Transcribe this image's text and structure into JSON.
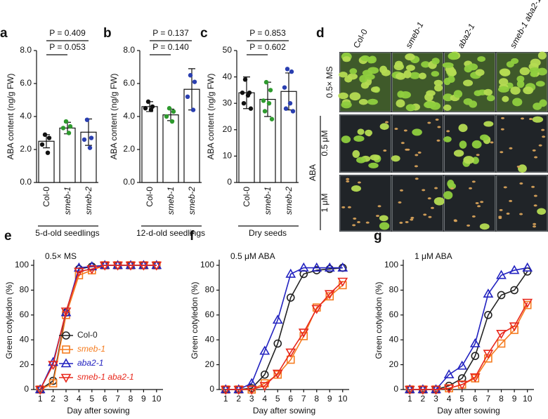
{
  "chart_data": [
    {
      "type": "bar",
      "panel": "a",
      "ylabel": "ABA content (ng/g FW)",
      "xlabel": "5-d-old seedlings",
      "categories": [
        "Col-0",
        "smeb-1",
        "smeb-2"
      ],
      "values": [
        2.5,
        3.3,
        3.05
      ],
      "errors": [
        0.4,
        0.35,
        0.8
      ],
      "points": [
        [
          2.9,
          2.7,
          2.3,
          1.8
        ],
        [
          3.7,
          3.4,
          3.3,
          3.0
        ],
        [
          3.8,
          2.7,
          2.6,
          2.1
        ]
      ],
      "point_colors": [
        "#111111",
        "#2e9a2e",
        "#2a3fb0"
      ],
      "ylim": [
        0,
        8
      ],
      "yticks": [
        {
          "value": 0,
          "label": "0.0"
        },
        {
          "value": 2,
          "label": "2.0"
        },
        {
          "value": 4,
          "label": "4.0"
        },
        {
          "value": 6,
          "label": "6.0"
        },
        {
          "value": 8,
          "label": "8.0"
        }
      ],
      "annotations": [
        "P = 0.409",
        "P = 0.053"
      ]
    },
    {
      "type": "bar",
      "panel": "b",
      "ylabel": "ABA content (ng/g FW)",
      "xlabel": "12-d-old seedlings",
      "categories": [
        "Col-0",
        "smeb-1",
        "smeb-2"
      ],
      "values": [
        4.6,
        4.1,
        5.65
      ],
      "errors": [
        0.3,
        0.35,
        1.25
      ],
      "points": [
        [
          4.9,
          4.6,
          4.5,
          4.4
        ],
        [
          4.5,
          4.3,
          4.0,
          3.7
        ],
        [
          6.5,
          6.1,
          5.2,
          4.4
        ]
      ],
      "point_colors": [
        "#111111",
        "#2e9a2e",
        "#2a3fb0"
      ],
      "ylim": [
        0,
        8
      ],
      "yticks": [
        {
          "value": 0,
          "label": "0.0"
        },
        {
          "value": 2,
          "label": "2.0"
        },
        {
          "value": 4,
          "label": "4.0"
        },
        {
          "value": 6,
          "label": "6.0"
        },
        {
          "value": 8,
          "label": "8.0"
        }
      ],
      "annotations": [
        "P = 0.137",
        "P = 0.140"
      ]
    },
    {
      "type": "bar",
      "panel": "c",
      "ylabel": "ABA content (ng/g FW)",
      "xlabel": "Dry seeds",
      "categories": [
        "Col-0",
        "smeb-1",
        "smeb-2"
      ],
      "values": [
        34,
        31.5,
        34.5
      ],
      "errors": [
        6,
        6.5,
        7
      ],
      "points": [
        [
          39,
          34,
          34,
          33,
          30,
          28
        ],
        [
          38,
          35,
          31,
          30,
          27,
          24
        ],
        [
          43,
          42,
          36,
          30,
          28,
          27
        ]
      ],
      "point_colors": [
        "#111111",
        "#2e9a2e",
        "#2a3fb0"
      ],
      "ylim": [
        0,
        50
      ],
      "yticks": [
        0,
        10,
        20,
        30,
        40,
        50
      ],
      "annotations": [
        "P = 0.853",
        "P = 0.602"
      ]
    },
    {
      "type": "line",
      "panel": "e",
      "title": "0.5× MS",
      "ylabel": "Green cotyledon (%)",
      "xlabel": "Day after sowing",
      "x": [
        1,
        2,
        3,
        4,
        5,
        6,
        7,
        8,
        9,
        10
      ],
      "xlim": [
        0.5,
        10.5
      ],
      "xticks": [
        1,
        2,
        3,
        4,
        5,
        6,
        7,
        8,
        9,
        10
      ],
      "ylim": [
        0,
        100
      ],
      "yticks": [
        0,
        20,
        40,
        60,
        80,
        100
      ],
      "legend": "lower right",
      "series": [
        {
          "name": "Col-0",
          "color": "#222222",
          "marker": "circle",
          "values": [
            0,
            7,
            62,
            97,
            99,
            100,
            100,
            100,
            100,
            100
          ]
        },
        {
          "name": "smeb-1",
          "color": "#f57c20",
          "marker": "square",
          "values": [
            0,
            5,
            60,
            92,
            96,
            100,
            100,
            100,
            100,
            100
          ]
        },
        {
          "name": "aba2-1",
          "color": "#2222c0",
          "marker": "triangle-up",
          "values": [
            0,
            22,
            62,
            98,
            99,
            100,
            100,
            100,
            100,
            100
          ]
        },
        {
          "name": "smeb-1 aba2-1",
          "color": "#e8281c",
          "marker": "triangle-down",
          "values": [
            0,
            20,
            63,
            95,
            97,
            100,
            100,
            100,
            100,
            100
          ]
        }
      ]
    },
    {
      "type": "line",
      "panel": "f",
      "title": "0.5 μM ABA",
      "ylabel": "Green cotyledon (%)",
      "xlabel": "Day after sowing",
      "x": [
        1,
        2,
        3,
        4,
        5,
        6,
        7,
        8,
        9,
        10
      ],
      "xlim": [
        0.5,
        10.5
      ],
      "xticks": [
        1,
        2,
        3,
        4,
        5,
        6,
        7,
        8,
        9,
        10
      ],
      "ylim": [
        0,
        100
      ],
      "yticks": [
        0,
        20,
        40,
        60,
        80,
        100
      ],
      "series": [
        {
          "color": "#222222",
          "marker": "circle",
          "values": [
            0,
            0,
            1,
            12,
            37,
            74,
            93,
            96,
            97,
            98
          ]
        },
        {
          "color": "#f57c20",
          "marker": "square",
          "values": [
            0,
            0,
            0,
            5,
            12,
            24,
            43,
            66,
            75,
            84
          ]
        },
        {
          "color": "#2222c0",
          "marker": "triangle-up",
          "values": [
            0,
            0,
            5,
            31,
            56,
            93,
            98,
            98,
            98,
            98
          ]
        },
        {
          "color": "#e8281c",
          "marker": "triangle-down",
          "values": [
            0,
            0,
            0,
            3,
            13,
            30,
            46,
            65,
            77,
            87
          ]
        }
      ]
    },
    {
      "type": "line",
      "panel": "g",
      "title": "1 μM ABA",
      "ylabel": "Green cotyledon (%)",
      "xlabel": "Day after sowing",
      "x": [
        1,
        2,
        3,
        4,
        5,
        6,
        7,
        8,
        9,
        10
      ],
      "xlim": [
        0.5,
        10.5
      ],
      "xticks": [
        1,
        2,
        3,
        4,
        5,
        6,
        7,
        8,
        9,
        10
      ],
      "ylim": [
        0,
        100
      ],
      "yticks": [
        0,
        20,
        40,
        60,
        80,
        100
      ],
      "series": [
        {
          "color": "#222222",
          "marker": "circle",
          "values": [
            0,
            0,
            0,
            3,
            9,
            27,
            60,
            76,
            80,
            95
          ]
        },
        {
          "color": "#f57c20",
          "marker": "square",
          "values": [
            0,
            0,
            0,
            1,
            4,
            9,
            25,
            37,
            48,
            68
          ]
        },
        {
          "color": "#2222c0",
          "marker": "triangle-up",
          "values": [
            0,
            0,
            0,
            12,
            19,
            37,
            77,
            92,
            96,
            98
          ]
        },
        {
          "color": "#e8281c",
          "marker": "triangle-down",
          "values": [
            0,
            0,
            0,
            1,
            4,
            10,
            29,
            45,
            51,
            70
          ]
        }
      ]
    }
  ],
  "photo_panel": {
    "label": "d",
    "columns": [
      "Col-0",
      "smeb-1",
      "aba2-1",
      "smeb-1 aba2-1"
    ],
    "rows": [
      "0.5× MS",
      "0.5 μM",
      "1 μM"
    ],
    "treatment": "ABA"
  }
}
